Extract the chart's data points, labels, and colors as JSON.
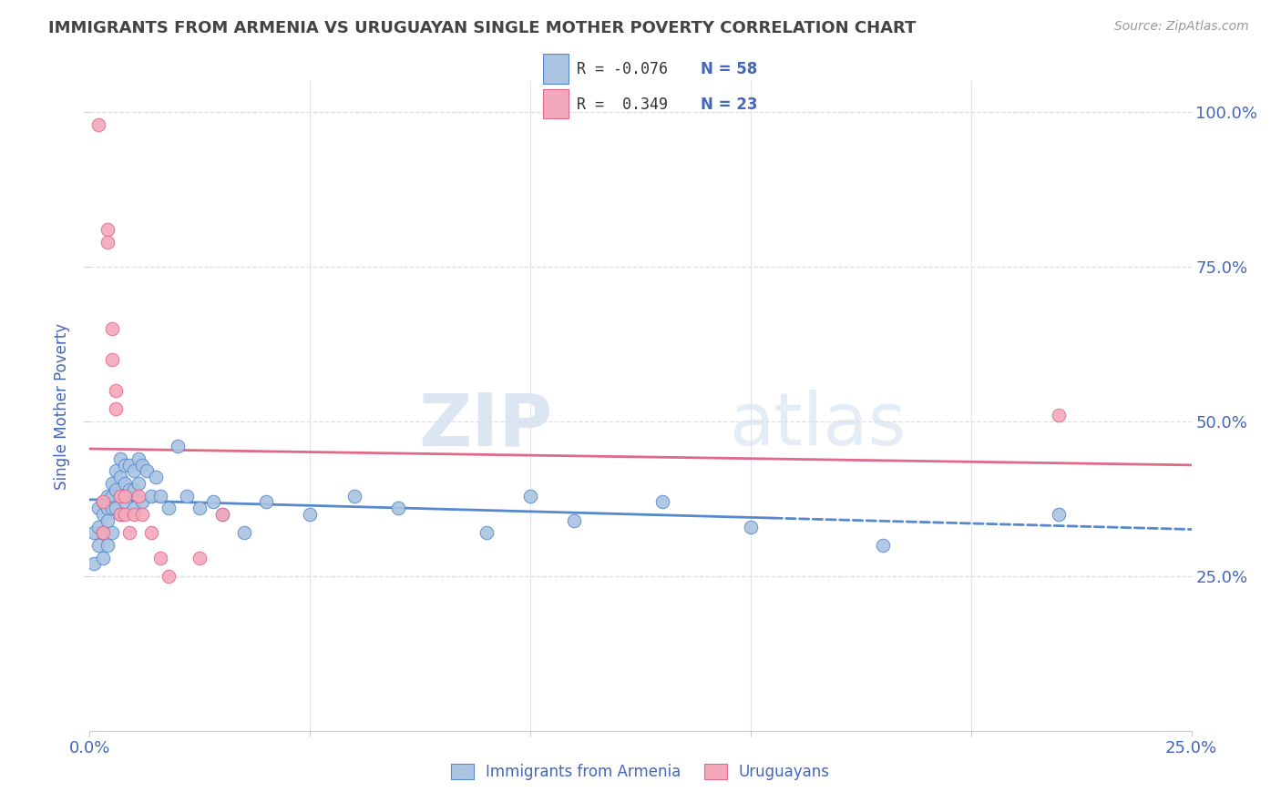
{
  "title": "IMMIGRANTS FROM ARMENIA VS URUGUAYAN SINGLE MOTHER POVERTY CORRELATION CHART",
  "source": "Source: ZipAtlas.com",
  "ylabel": "Single Mother Poverty",
  "legend_label1": "Immigrants from Armenia",
  "legend_label2": "Uruguayans",
  "r1": "-0.076",
  "n1": "58",
  "r2": "0.349",
  "n2": "23",
  "color_blue": "#aac4e2",
  "color_pink": "#f4a8bc",
  "line_blue": "#5588cc",
  "line_pink": "#e06888",
  "watermark_zip": "ZIP",
  "watermark_atlas": "atlas",
  "xlim": [
    0.0,
    0.25
  ],
  "ylim": [
    0.0,
    1.05
  ],
  "yticks": [
    0.25,
    0.5,
    0.75,
    1.0
  ],
  "ytick_labels": [
    "25.0%",
    "50.0%",
    "75.0%",
    "100.0%"
  ],
  "blue_scatter_x": [
    0.001,
    0.001,
    0.002,
    0.002,
    0.002,
    0.003,
    0.003,
    0.003,
    0.003,
    0.004,
    0.004,
    0.004,
    0.004,
    0.005,
    0.005,
    0.005,
    0.005,
    0.006,
    0.006,
    0.006,
    0.007,
    0.007,
    0.007,
    0.007,
    0.008,
    0.008,
    0.008,
    0.009,
    0.009,
    0.01,
    0.01,
    0.01,
    0.011,
    0.011,
    0.012,
    0.012,
    0.013,
    0.014,
    0.015,
    0.016,
    0.018,
    0.02,
    0.022,
    0.025,
    0.028,
    0.03,
    0.035,
    0.04,
    0.05,
    0.06,
    0.07,
    0.09,
    0.1,
    0.11,
    0.13,
    0.15,
    0.18,
    0.22
  ],
  "blue_scatter_y": [
    0.32,
    0.27,
    0.36,
    0.33,
    0.3,
    0.37,
    0.35,
    0.32,
    0.28,
    0.38,
    0.36,
    0.34,
    0.3,
    0.4,
    0.38,
    0.36,
    0.32,
    0.42,
    0.39,
    0.36,
    0.44,
    0.41,
    0.38,
    0.35,
    0.43,
    0.4,
    0.37,
    0.43,
    0.39,
    0.42,
    0.39,
    0.36,
    0.44,
    0.4,
    0.43,
    0.37,
    0.42,
    0.38,
    0.41,
    0.38,
    0.36,
    0.46,
    0.38,
    0.36,
    0.37,
    0.35,
    0.32,
    0.37,
    0.35,
    0.38,
    0.36,
    0.32,
    0.38,
    0.34,
    0.37,
    0.33,
    0.3,
    0.35
  ],
  "pink_scatter_x": [
    0.002,
    0.003,
    0.003,
    0.004,
    0.004,
    0.005,
    0.005,
    0.006,
    0.006,
    0.007,
    0.007,
    0.008,
    0.008,
    0.009,
    0.01,
    0.011,
    0.012,
    0.014,
    0.016,
    0.018,
    0.025,
    0.03,
    0.22
  ],
  "pink_scatter_y": [
    0.98,
    0.37,
    0.32,
    0.81,
    0.79,
    0.65,
    0.6,
    0.55,
    0.52,
    0.38,
    0.35,
    0.38,
    0.35,
    0.32,
    0.35,
    0.38,
    0.35,
    0.32,
    0.28,
    0.25,
    0.28,
    0.35,
    0.51
  ],
  "grid_color": "#d8ddf0",
  "text_color": "#4466bb",
  "title_color": "#444444",
  "bg_color": "#ffffff",
  "trendline_blue_split": 0.155
}
